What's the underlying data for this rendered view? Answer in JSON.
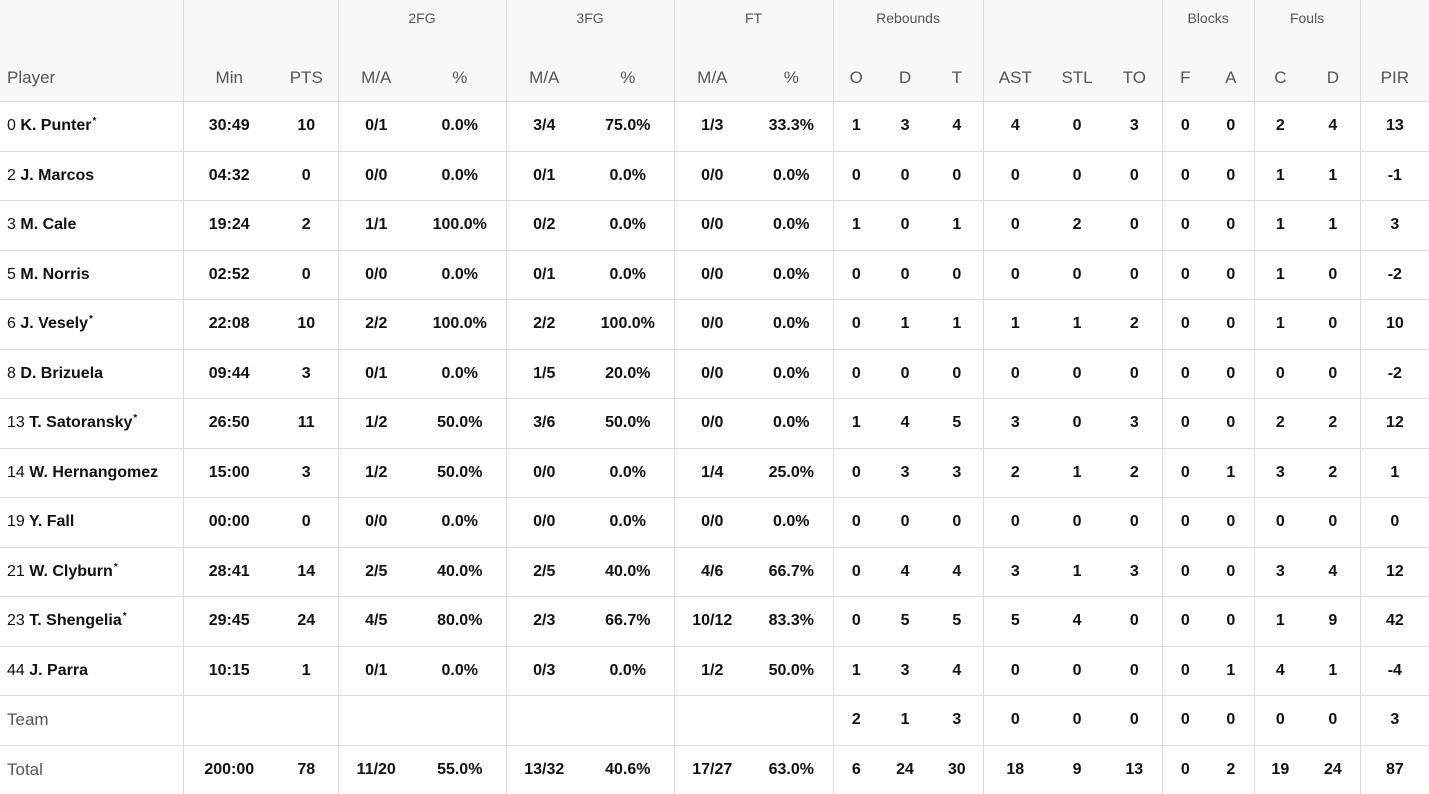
{
  "header": {
    "groups": {
      "fg2": "2FG",
      "fg3": "3FG",
      "ft": "FT",
      "rebounds": "Rebounds",
      "blocks": "Blocks",
      "fouls": "Fouls"
    },
    "columns": {
      "player": "Player",
      "min": "Min",
      "pts": "PTS",
      "fg2_ma": "M/A",
      "fg2_pct": "%",
      "fg3_ma": "M/A",
      "fg3_pct": "%",
      "ft_ma": "M/A",
      "ft_pct": "%",
      "reb_o": "O",
      "reb_d": "D",
      "reb_t": "T",
      "ast": "AST",
      "stl": "STL",
      "to": "TO",
      "blk_f": "F",
      "blk_a": "A",
      "foul_c": "C",
      "foul_d": "D",
      "pir": "PIR"
    }
  },
  "rows": [
    {
      "num": "0",
      "name": "K. Punter",
      "star": "*",
      "min": "30:49",
      "pts": "10",
      "fg2_ma": "0/1",
      "fg2_pct": "0.0%",
      "fg3_ma": "3/4",
      "fg3_pct": "75.0%",
      "ft_ma": "1/3",
      "ft_pct": "33.3%",
      "reb_o": "1",
      "reb_d": "3",
      "reb_t": "4",
      "ast": "4",
      "stl": "0",
      "to": "3",
      "blk_f": "0",
      "blk_a": "0",
      "foul_c": "2",
      "foul_d": "4",
      "pir": "13"
    },
    {
      "num": "2",
      "name": "J. Marcos",
      "star": "",
      "min": "04:32",
      "pts": "0",
      "fg2_ma": "0/0",
      "fg2_pct": "0.0%",
      "fg3_ma": "0/1",
      "fg3_pct": "0.0%",
      "ft_ma": "0/0",
      "ft_pct": "0.0%",
      "reb_o": "0",
      "reb_d": "0",
      "reb_t": "0",
      "ast": "0",
      "stl": "0",
      "to": "0",
      "blk_f": "0",
      "blk_a": "0",
      "foul_c": "1",
      "foul_d": "1",
      "pir": "-1"
    },
    {
      "num": "3",
      "name": "M. Cale",
      "star": "",
      "min": "19:24",
      "pts": "2",
      "fg2_ma": "1/1",
      "fg2_pct": "100.0%",
      "fg3_ma": "0/2",
      "fg3_pct": "0.0%",
      "ft_ma": "0/0",
      "ft_pct": "0.0%",
      "reb_o": "1",
      "reb_d": "0",
      "reb_t": "1",
      "ast": "0",
      "stl": "2",
      "to": "0",
      "blk_f": "0",
      "blk_a": "0",
      "foul_c": "1",
      "foul_d": "1",
      "pir": "3"
    },
    {
      "num": "5",
      "name": "M. Norris",
      "star": "",
      "min": "02:52",
      "pts": "0",
      "fg2_ma": "0/0",
      "fg2_pct": "0.0%",
      "fg3_ma": "0/1",
      "fg3_pct": "0.0%",
      "ft_ma": "0/0",
      "ft_pct": "0.0%",
      "reb_o": "0",
      "reb_d": "0",
      "reb_t": "0",
      "ast": "0",
      "stl": "0",
      "to": "0",
      "blk_f": "0",
      "blk_a": "0",
      "foul_c": "1",
      "foul_d": "0",
      "pir": "-2"
    },
    {
      "num": "6",
      "name": "J. Vesely",
      "star": "*",
      "min": "22:08",
      "pts": "10",
      "fg2_ma": "2/2",
      "fg2_pct": "100.0%",
      "fg3_ma": "2/2",
      "fg3_pct": "100.0%",
      "ft_ma": "0/0",
      "ft_pct": "0.0%",
      "reb_o": "0",
      "reb_d": "1",
      "reb_t": "1",
      "ast": "1",
      "stl": "1",
      "to": "2",
      "blk_f": "0",
      "blk_a": "0",
      "foul_c": "1",
      "foul_d": "0",
      "pir": "10"
    },
    {
      "num": "8",
      "name": "D. Brizuela",
      "star": "",
      "min": "09:44",
      "pts": "3",
      "fg2_ma": "0/1",
      "fg2_pct": "0.0%",
      "fg3_ma": "1/5",
      "fg3_pct": "20.0%",
      "ft_ma": "0/0",
      "ft_pct": "0.0%",
      "reb_o": "0",
      "reb_d": "0",
      "reb_t": "0",
      "ast": "0",
      "stl": "0",
      "to": "0",
      "blk_f": "0",
      "blk_a": "0",
      "foul_c": "0",
      "foul_d": "0",
      "pir": "-2"
    },
    {
      "num": "13",
      "name": "T. Satoransky",
      "star": "*",
      "min": "26:50",
      "pts": "11",
      "fg2_ma": "1/2",
      "fg2_pct": "50.0%",
      "fg3_ma": "3/6",
      "fg3_pct": "50.0%",
      "ft_ma": "0/0",
      "ft_pct": "0.0%",
      "reb_o": "1",
      "reb_d": "4",
      "reb_t": "5",
      "ast": "3",
      "stl": "0",
      "to": "3",
      "blk_f": "0",
      "blk_a": "0",
      "foul_c": "2",
      "foul_d": "2",
      "pir": "12"
    },
    {
      "num": "14",
      "name": "W. Hernangomez",
      "star": "",
      "min": "15:00",
      "pts": "3",
      "fg2_ma": "1/2",
      "fg2_pct": "50.0%",
      "fg3_ma": "0/0",
      "fg3_pct": "0.0%",
      "ft_ma": "1/4",
      "ft_pct": "25.0%",
      "reb_o": "0",
      "reb_d": "3",
      "reb_t": "3",
      "ast": "2",
      "stl": "1",
      "to": "2",
      "blk_f": "0",
      "blk_a": "1",
      "foul_c": "3",
      "foul_d": "2",
      "pir": "1"
    },
    {
      "num": "19",
      "name": "Y. Fall",
      "star": "",
      "min": "00:00",
      "pts": "0",
      "fg2_ma": "0/0",
      "fg2_pct": "0.0%",
      "fg3_ma": "0/0",
      "fg3_pct": "0.0%",
      "ft_ma": "0/0",
      "ft_pct": "0.0%",
      "reb_o": "0",
      "reb_d": "0",
      "reb_t": "0",
      "ast": "0",
      "stl": "0",
      "to": "0",
      "blk_f": "0",
      "blk_a": "0",
      "foul_c": "0",
      "foul_d": "0",
      "pir": "0"
    },
    {
      "num": "21",
      "name": "W. Clyburn",
      "star": "*",
      "min": "28:41",
      "pts": "14",
      "fg2_ma": "2/5",
      "fg2_pct": "40.0%",
      "fg3_ma": "2/5",
      "fg3_pct": "40.0%",
      "ft_ma": "4/6",
      "ft_pct": "66.7%",
      "reb_o": "0",
      "reb_d": "4",
      "reb_t": "4",
      "ast": "3",
      "stl": "1",
      "to": "3",
      "blk_f": "0",
      "blk_a": "0",
      "foul_c": "3",
      "foul_d": "4",
      "pir": "12"
    },
    {
      "num": "23",
      "name": "T. Shengelia",
      "star": "*",
      "min": "29:45",
      "pts": "24",
      "fg2_ma": "4/5",
      "fg2_pct": "80.0%",
      "fg3_ma": "2/3",
      "fg3_pct": "66.7%",
      "ft_ma": "10/12",
      "ft_pct": "83.3%",
      "reb_o": "0",
      "reb_d": "5",
      "reb_t": "5",
      "ast": "5",
      "stl": "4",
      "to": "0",
      "blk_f": "0",
      "blk_a": "0",
      "foul_c": "1",
      "foul_d": "9",
      "pir": "42"
    },
    {
      "num": "44",
      "name": "J. Parra",
      "star": "",
      "min": "10:15",
      "pts": "1",
      "fg2_ma": "0/1",
      "fg2_pct": "0.0%",
      "fg3_ma": "0/3",
      "fg3_pct": "0.0%",
      "ft_ma": "1/2",
      "ft_pct": "50.0%",
      "reb_o": "1",
      "reb_d": "3",
      "reb_t": "4",
      "ast": "0",
      "stl": "0",
      "to": "0",
      "blk_f": "0",
      "blk_a": "1",
      "foul_c": "4",
      "foul_d": "1",
      "pir": "-4"
    }
  ],
  "team": {
    "label": "Team",
    "min": "",
    "pts": "",
    "fg2_ma": "",
    "fg2_pct": "",
    "fg3_ma": "",
    "fg3_pct": "",
    "ft_ma": "",
    "ft_pct": "",
    "reb_o": "2",
    "reb_d": "1",
    "reb_t": "3",
    "ast": "0",
    "stl": "0",
    "to": "0",
    "blk_f": "0",
    "blk_a": "0",
    "foul_c": "0",
    "foul_d": "0",
    "pir": "3"
  },
  "total": {
    "label": "Total",
    "min": "200:00",
    "pts": "78",
    "fg2_ma": "11/20",
    "fg2_pct": "55.0%",
    "fg3_ma": "13/32",
    "fg3_pct": "40.6%",
    "ft_ma": "17/27",
    "ft_pct": "63.0%",
    "reb_o": "6",
    "reb_d": "24",
    "reb_t": "30",
    "ast": "18",
    "stl": "9",
    "to": "13",
    "blk_f": "0",
    "blk_a": "2",
    "foul_c": "19",
    "foul_d": "24",
    "pir": "87"
  }
}
